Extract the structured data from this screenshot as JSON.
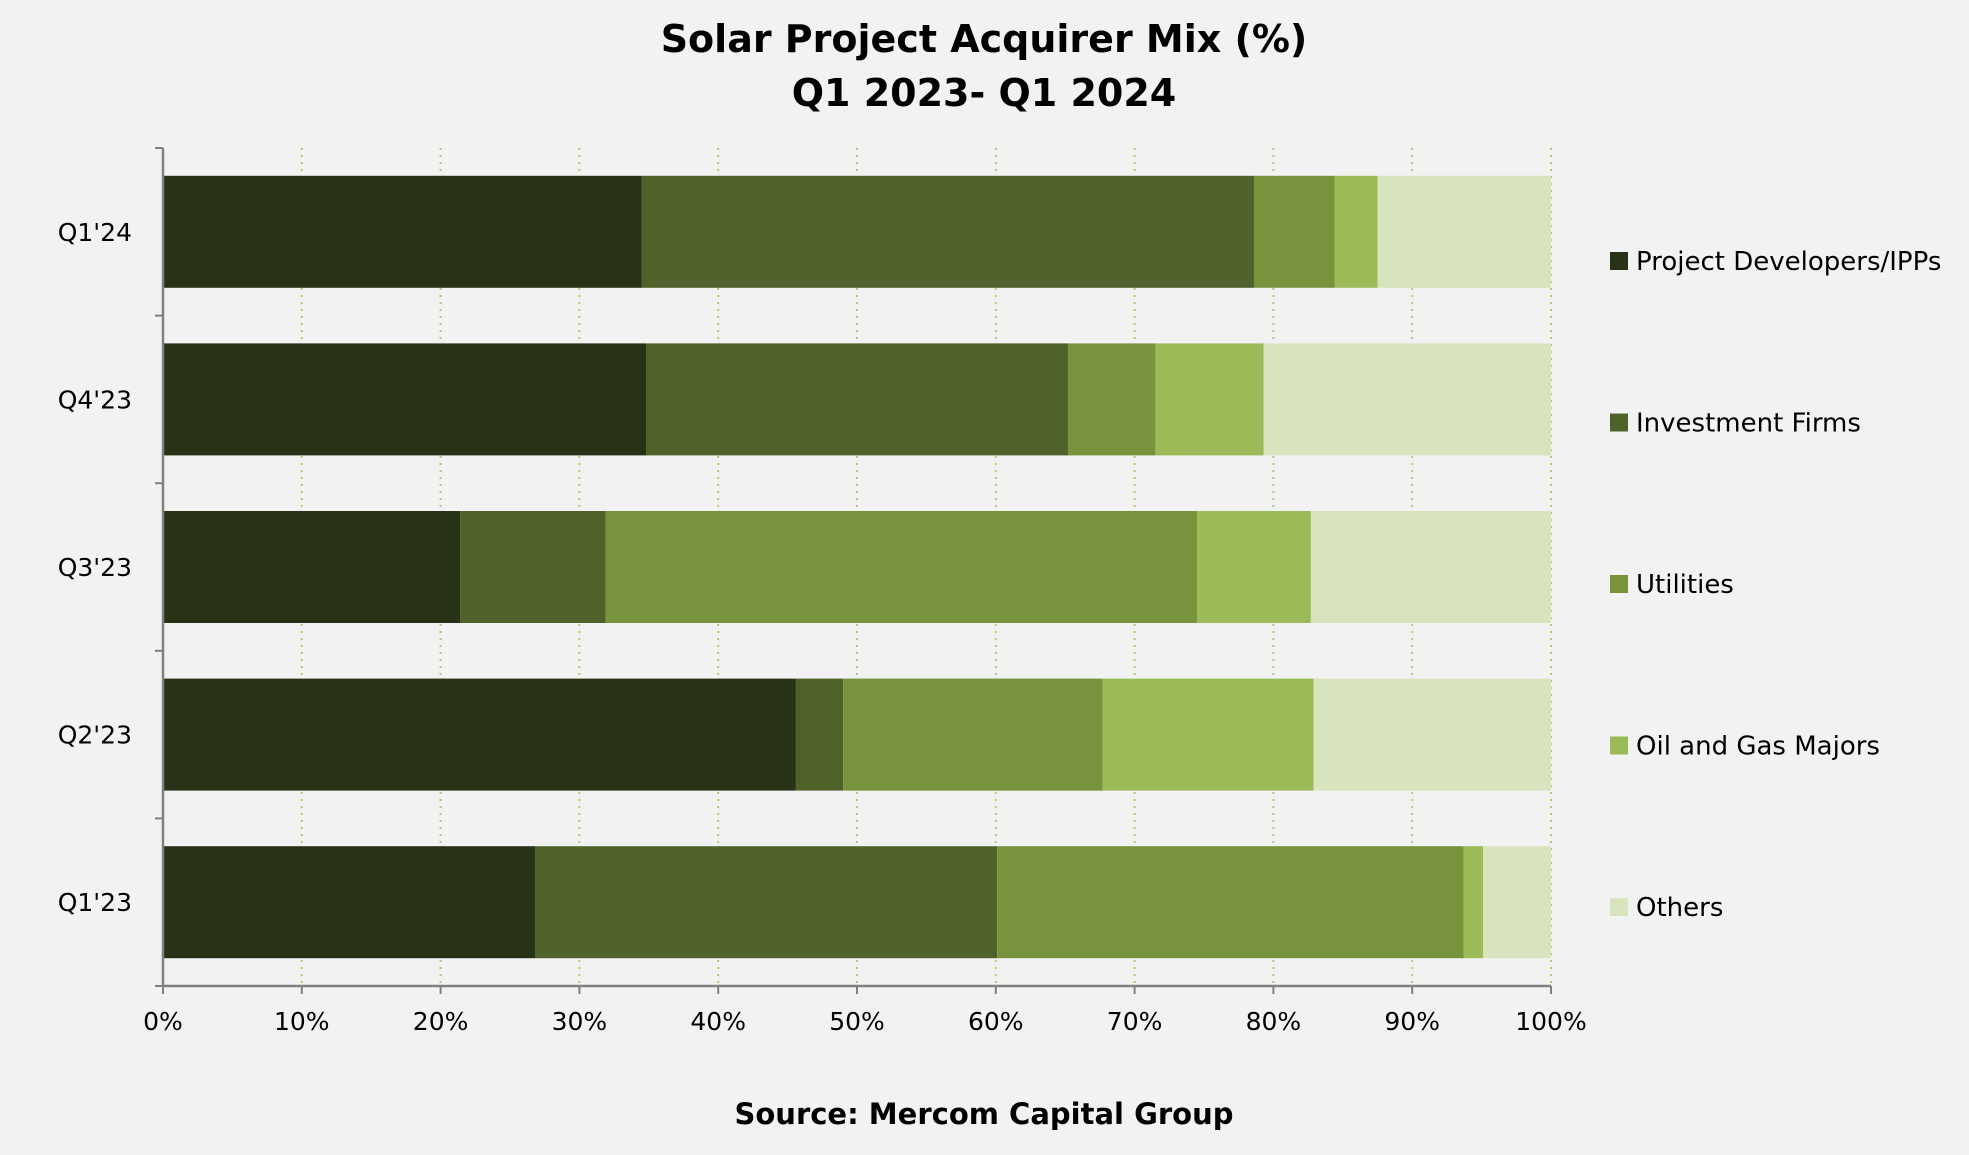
{
  "chart_data": {
    "type": "bar",
    "orientation": "horizontal",
    "stacked": true,
    "title": "Solar Project Acquirer Mix (%)",
    "subtitle": "Q1 2023- Q1 2024",
    "source": "Source: Mercom Capital Group",
    "categories": [
      "Q1'24",
      "Q4'23",
      "Q3'23",
      "Q2'23",
      "Q1'23"
    ],
    "xlim": [
      0,
      100
    ],
    "x_ticks": [
      "0%",
      "10%",
      "20%",
      "30%",
      "40%",
      "50%",
      "60%",
      "70%",
      "80%",
      "90%",
      "100%"
    ],
    "grid": "vertical-dotted",
    "legend_position": "right",
    "series": [
      {
        "name": "Project Developers/IPPs",
        "color": "#283216",
        "values": [
          34.5,
          34.8,
          21.4,
          45.6,
          26.8
        ]
      },
      {
        "name": "Investment Firms",
        "color": "#4f622a",
        "values": [
          44.1,
          30.4,
          10.5,
          3.4,
          33.3
        ]
      },
      {
        "name": "Utilities",
        "color": "#77933c",
        "values": [
          5.8,
          6.3,
          42.6,
          18.7,
          33.6
        ]
      },
      {
        "name": "Oil and Gas Majors",
        "color": "#9bbb59",
        "values": [
          3.1,
          7.8,
          8.2,
          15.2,
          1.4
        ]
      },
      {
        "name": "Others",
        "color": "#d7e4bd",
        "values": [
          12.5,
          20.7,
          17.3,
          17.1,
          4.9
        ]
      }
    ]
  }
}
